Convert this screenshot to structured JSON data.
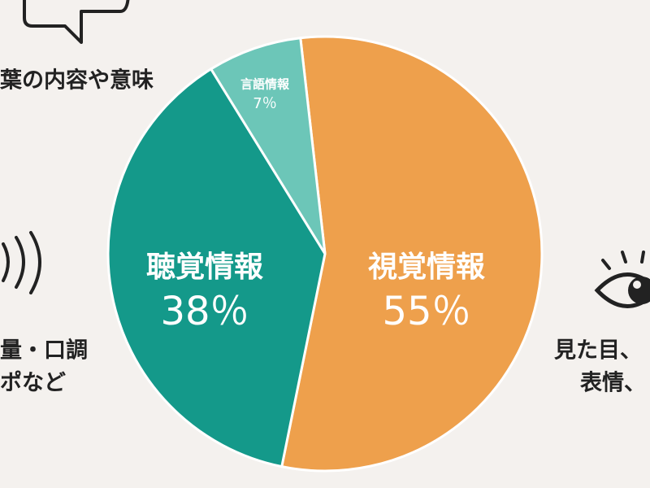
{
  "chart_data": {
    "type": "pie",
    "categories": [
      "視覚情報",
      "聴覚情報",
      "言語情報"
    ],
    "values": [
      55,
      38,
      7
    ],
    "value_labels": [
      "55％",
      "38％",
      "7％"
    ],
    "colors": [
      "#eea04c",
      "#14998a",
      "#6cc6b8"
    ],
    "annotations": [
      "葉の内容や意味",
      "量・口調",
      "ポなど",
      "見た目、",
      "表情、"
    ]
  }
}
